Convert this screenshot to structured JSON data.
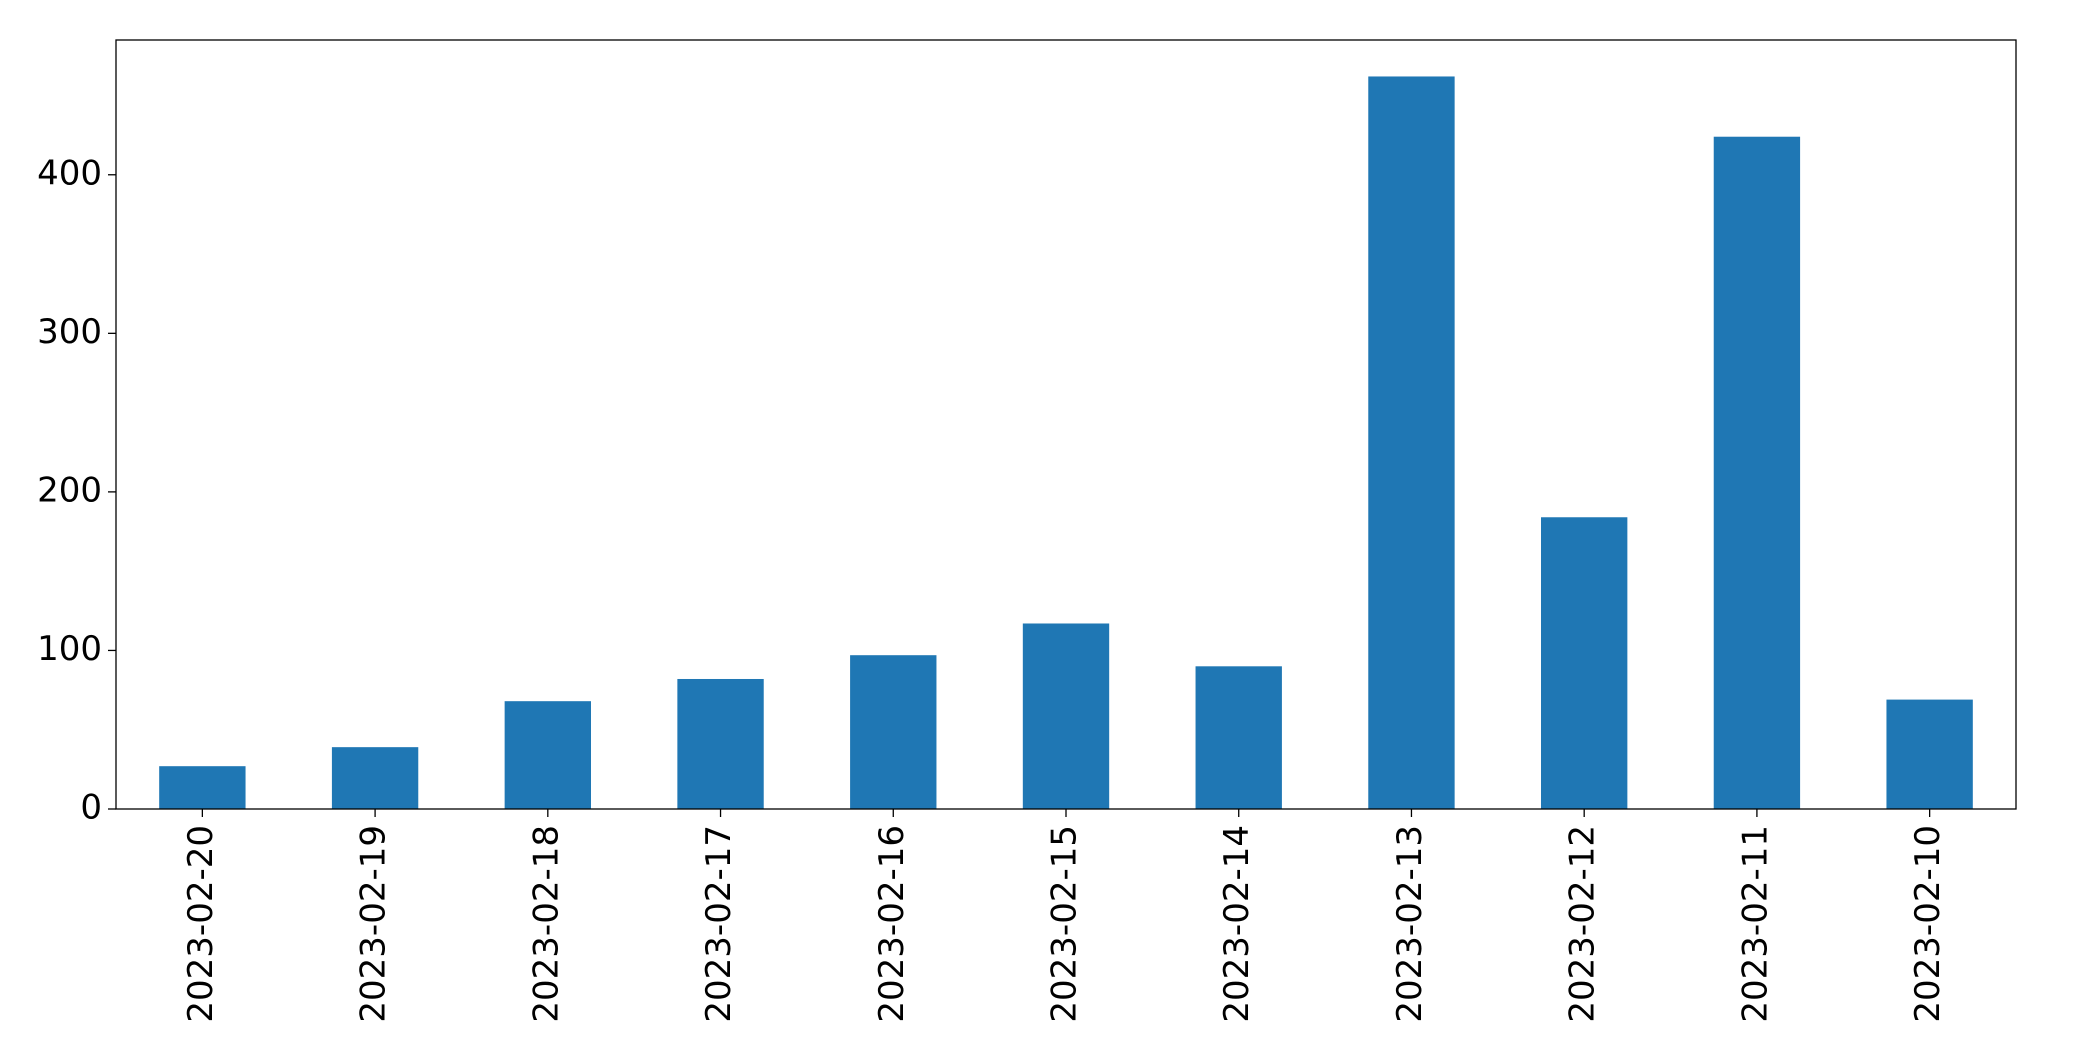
{
  "chart_data": {
    "type": "bar",
    "categories": [
      "2023-02-20",
      "2023-02-19",
      "2023-02-18",
      "2023-02-17",
      "2023-02-16",
      "2023-02-15",
      "2023-02-14",
      "2023-02-13",
      "2023-02-12",
      "2023-02-11",
      "2023-02-10"
    ],
    "values": [
      27,
      39,
      68,
      82,
      97,
      117,
      90,
      462,
      184,
      424,
      69
    ],
    "color": "#1f77b4",
    "ylim": [
      0,
      485
    ],
    "yticks": [
      0,
      100,
      200,
      300,
      400
    ],
    "grid": false
  }
}
